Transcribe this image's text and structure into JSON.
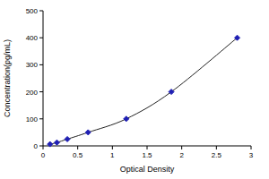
{
  "chart_data": {
    "type": "line",
    "x_label": "Optical Density",
    "y_label": "Concentration(pg/mL)",
    "x": [
      0.1,
      0.2,
      0.35,
      0.65,
      1.2,
      1.85,
      2.8
    ],
    "values": [
      6.25,
      12.5,
      25,
      50,
      100,
      200,
      400
    ],
    "color": "#1f1fb4",
    "marker": "diamond",
    "xlim": [
      0,
      3
    ],
    "xticks": [
      0,
      0.5,
      1,
      1.5,
      2,
      2.5,
      3
    ],
    "ylim": [
      0,
      500
    ],
    "yticks": [
      0,
      100,
      200,
      300,
      400,
      500
    ],
    "grid": false
  }
}
